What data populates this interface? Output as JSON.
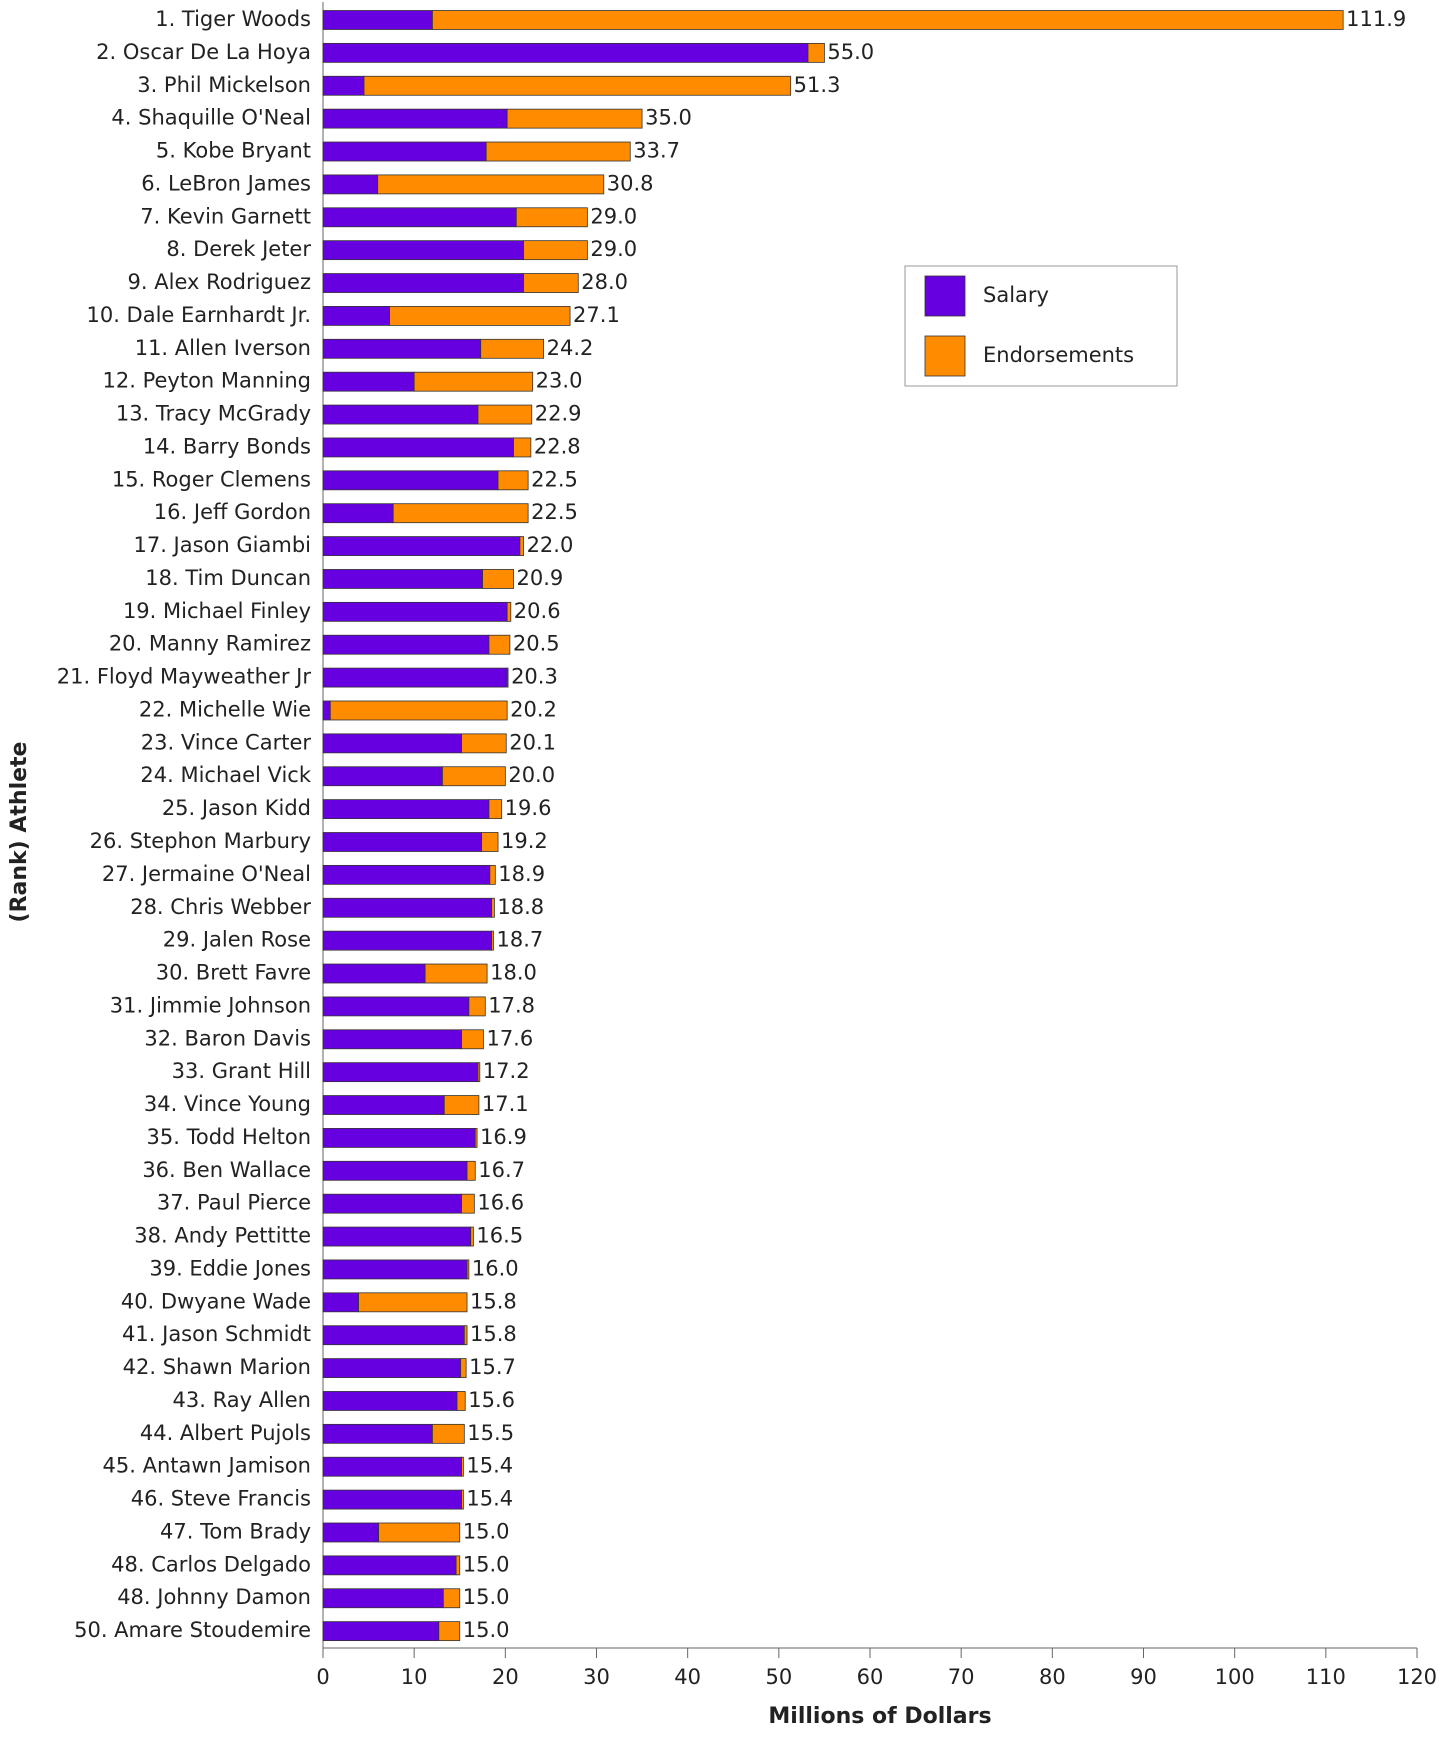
{
  "chart_data": {
    "type": "bar",
    "orientation": "horizontal",
    "stacked": true,
    "xlabel": "Millions of Dollars",
    "ylabel": "(Rank) Athlete",
    "categories": [
      "1. Tiger Woods",
      "2. Oscar De La Hoya",
      "3. Phil Mickelson",
      "4. Shaquille O'Neal",
      "5. Kobe Bryant",
      "6. LeBron James",
      "7. Kevin Garnett",
      "8. Derek Jeter",
      "9. Alex Rodriguez",
      "10. Dale Earnhardt Jr.",
      "11. Allen Iverson",
      "12. Peyton Manning",
      "13. Tracy McGrady",
      "14. Barry Bonds",
      "15. Roger Clemens",
      "16. Jeff Gordon",
      "17. Jason Giambi",
      "18. Tim Duncan",
      "19. Michael Finley",
      "20. Manny Ramirez",
      "21. Floyd Mayweather Jr",
      "22. Michelle Wie",
      "23. Vince Carter",
      "24. Michael Vick",
      "25. Jason Kidd",
      "26. Stephon Marbury",
      "27. Jermaine O'Neal",
      "28. Chris Webber",
      "29. Jalen Rose",
      "30. Brett Favre",
      "31. Jimmie Johnson",
      "32. Baron Davis",
      "33. Grant Hill",
      "34. Vince Young",
      "35. Todd Helton",
      "36. Ben Wallace",
      "37. Paul Pierce",
      "38. Andy Pettitte",
      "39. Eddie Jones",
      "40. Dwyane Wade",
      "41. Jason Schmidt",
      "42. Shawn Marion",
      "43. Ray Allen",
      "44. Albert Pujols",
      "45. Antawn Jamison",
      "46. Steve Francis",
      "47. Tom Brady",
      "48. Carlos Delgado",
      "48. Johnny Damon",
      "50. Amare Stoudemire"
    ],
    "series": [
      {
        "name": "Salary",
        "color": "#6600e0",
        "values": [
          12.0,
          53.2,
          4.5,
          20.2,
          17.9,
          6.0,
          21.2,
          22.0,
          22.0,
          7.3,
          17.3,
          10.0,
          17.0,
          20.9,
          19.2,
          7.7,
          21.6,
          17.5,
          20.2,
          18.2,
          20.2,
          0.8,
          15.2,
          13.1,
          18.2,
          17.4,
          18.3,
          18.5,
          18.5,
          11.2,
          16.0,
          15.2,
          17.0,
          13.3,
          16.7,
          15.8,
          15.2,
          16.2,
          15.8,
          3.9,
          15.5,
          15.1,
          14.7,
          12.0,
          15.2,
          15.2,
          6.1,
          14.6,
          13.2,
          12.7
        ]
      },
      {
        "name": "Endorsements",
        "color": "#ff8c00",
        "values": [
          99.9,
          1.8,
          46.8,
          14.8,
          15.8,
          24.8,
          7.8,
          7.0,
          6.0,
          19.8,
          6.9,
          13.0,
          5.9,
          1.9,
          3.3,
          14.8,
          0.4,
          3.4,
          0.4,
          2.3,
          0.1,
          19.4,
          4.9,
          6.9,
          1.4,
          1.8,
          0.6,
          0.3,
          0.2,
          6.8,
          1.8,
          2.4,
          0.2,
          3.8,
          0.2,
          0.9,
          1.4,
          0.3,
          0.2,
          11.9,
          0.3,
          0.6,
          0.9,
          3.5,
          0.2,
          0.2,
          8.9,
          0.4,
          1.8,
          2.3
        ]
      }
    ],
    "total_labels": [
      "111.9",
      "55.0",
      "51.3",
      "35.0",
      "33.7",
      "30.8",
      "29.0",
      "29.0",
      "28.0",
      "27.1",
      "24.2",
      "23.0",
      "22.9",
      "22.8",
      "22.5",
      "22.5",
      "22.0",
      "20.9",
      "20.6",
      "20.5",
      "20.3",
      "20.2",
      "20.1",
      "20.0",
      "19.6",
      "19.2",
      "18.9",
      "18.8",
      "18.7",
      "18.0",
      "17.8",
      "17.6",
      "17.2",
      "17.1",
      "16.9",
      "16.7",
      "16.6",
      "16.5",
      "16.0",
      "15.8",
      "15.8",
      "15.7",
      "15.6",
      "15.5",
      "15.4",
      "15.4",
      "15.0",
      "15.0",
      "15.0",
      "15.0"
    ],
    "xlim": [
      0,
      120
    ],
    "xticks": [
      0,
      10,
      20,
      30,
      40,
      50,
      60,
      70,
      80,
      90,
      100,
      110,
      120
    ],
    "legend": "upper right"
  }
}
